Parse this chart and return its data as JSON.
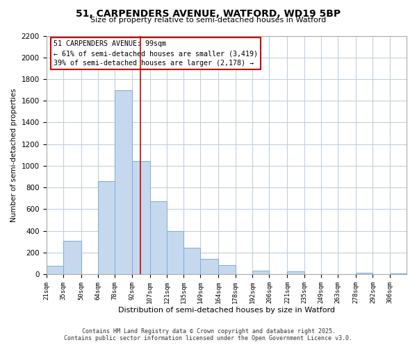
{
  "title": "51, CARPENDERS AVENUE, WATFORD, WD19 5BP",
  "subtitle": "Size of property relative to semi-detached houses in Watford",
  "xlabel": "Distribution of semi-detached houses by size in Watford",
  "ylabel": "Number of semi-detached properties",
  "bin_labels": [
    "21sqm",
    "35sqm",
    "50sqm",
    "64sqm",
    "78sqm",
    "92sqm",
    "107sqm",
    "121sqm",
    "135sqm",
    "149sqm",
    "164sqm",
    "178sqm",
    "192sqm",
    "206sqm",
    "221sqm",
    "235sqm",
    "249sqm",
    "263sqm",
    "278sqm",
    "292sqm",
    "306sqm"
  ],
  "bin_left_edges": [
    21,
    35,
    50,
    64,
    78,
    92,
    107,
    121,
    135,
    149,
    164,
    178,
    192,
    206,
    221,
    235,
    249,
    263,
    278,
    292,
    306
  ],
  "bin_widths": [
    14,
    15,
    14,
    14,
    14,
    15,
    14,
    14,
    14,
    15,
    14,
    14,
    14,
    15,
    14,
    14,
    14,
    15,
    14,
    14,
    14
  ],
  "bar_heights": [
    75,
    310,
    0,
    860,
    1700,
    1045,
    675,
    395,
    245,
    140,
    80,
    0,
    35,
    0,
    25,
    0,
    0,
    0,
    10,
    0,
    5
  ],
  "bar_color": "#c5d8ee",
  "bar_edge_color": "#7aaed4",
  "property_line_x": 99,
  "property_line_color": "#cc0000",
  "annotation_title": "51 CARPENDERS AVENUE: 99sqm",
  "annotation_line1": "← 61% of semi-detached houses are smaller (3,419)",
  "annotation_line2": "39% of semi-detached houses are larger (2,178) →",
  "annotation_box_color": "white",
  "annotation_box_edge": "#cc0000",
  "ylim": [
    0,
    2200
  ],
  "xlim_left": 21,
  "xlim_right": 320,
  "yticks": [
    0,
    200,
    400,
    600,
    800,
    1000,
    1200,
    1400,
    1600,
    1800,
    2000,
    2200
  ],
  "footer_line1": "Contains HM Land Registry data © Crown copyright and database right 2025.",
  "footer_line2": "Contains public sector information licensed under the Open Government Licence v3.0.",
  "bg_color": "#ffffff",
  "grid_color": "#c0cfe0"
}
